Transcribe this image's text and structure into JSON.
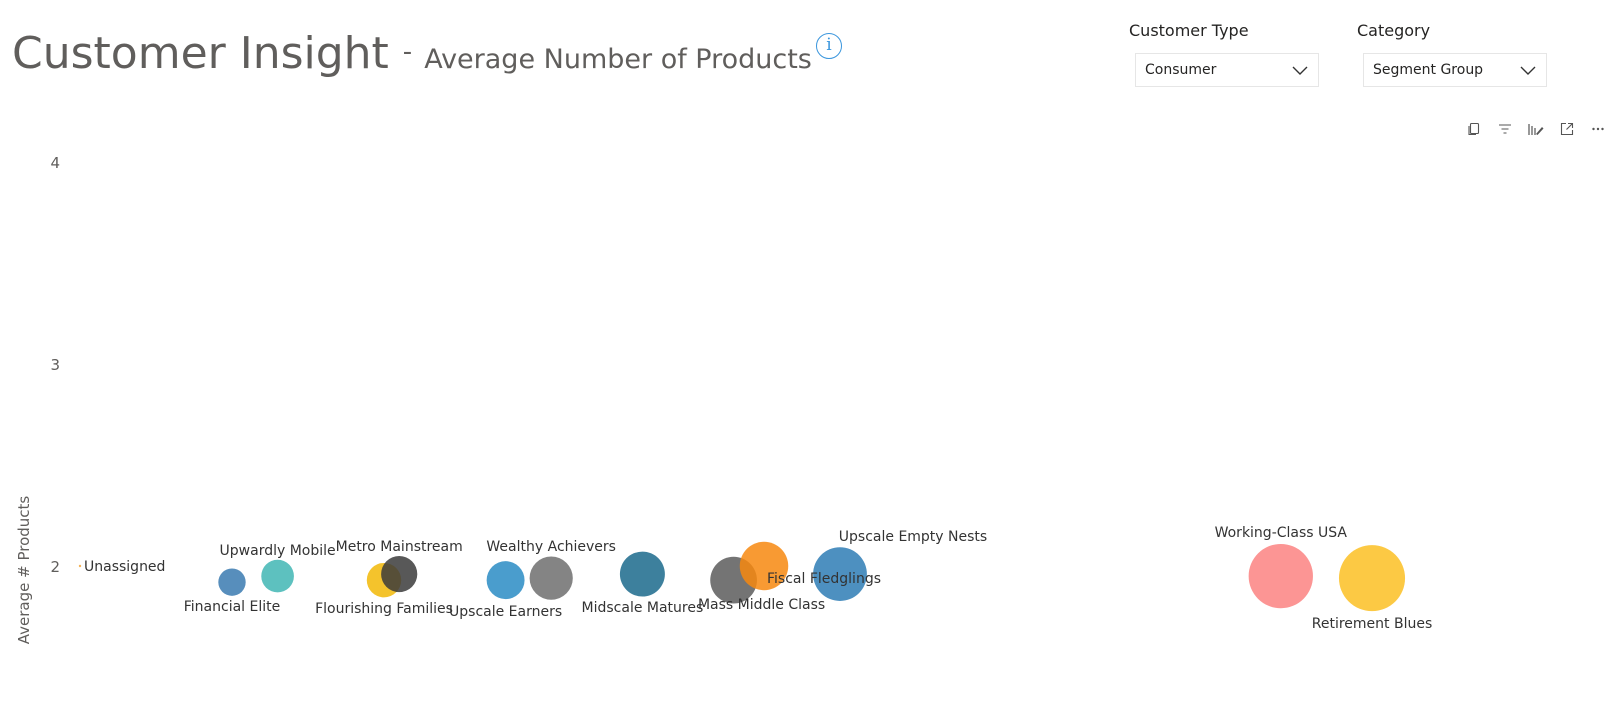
{
  "header": {
    "title": "Customer Insight",
    "separator": "-",
    "subtitle": "Average Number of Products",
    "info_icon": "info-icon"
  },
  "slicers": {
    "customer_type": {
      "label": "Customer Type",
      "value": "Consumer"
    },
    "category": {
      "label": "Category",
      "value": "Segment Group"
    }
  },
  "toolbar": {
    "icons": [
      "copy-icon",
      "filter-icon",
      "format-visual-icon",
      "focus-mode-icon",
      "more-options-icon"
    ]
  },
  "chart_data": {
    "type": "scatter",
    "title": "",
    "xlabel": "",
    "ylabel": "Average # Products",
    "ylim": [
      1.65,
      4.1
    ],
    "y_ticks": [
      2,
      3,
      4
    ],
    "grid": false,
    "legend": "none",
    "points": [
      {
        "label": "Unassigned",
        "x": 0.0,
        "y": 2.0,
        "size": 1,
        "color": "#f2a43a"
      },
      {
        "label": "Financial Elite",
        "x": 1.0,
        "y": 1.92,
        "size": 11,
        "color": "#3a7ab0"
      },
      {
        "label": "Upwardly Mobile",
        "x": 1.3,
        "y": 1.95,
        "size": 14,
        "color": "#41b6b4"
      },
      {
        "label": "Flourishing Families",
        "x": 2.0,
        "y": 1.93,
        "size": 15,
        "color": "#f2b807"
      },
      {
        "label": "Metro Mainstream",
        "x": 2.1,
        "y": 1.96,
        "size": 16,
        "color": "#3b3b3b"
      },
      {
        "label": "Upscale Earners",
        "x": 2.8,
        "y": 1.93,
        "size": 17,
        "color": "#2a8cc4"
      },
      {
        "label": "Wealthy Achievers",
        "x": 3.1,
        "y": 1.94,
        "size": 20,
        "color": "#6e6e6e"
      },
      {
        "label": "Midscale Matures",
        "x": 3.7,
        "y": 1.96,
        "size": 21,
        "color": "#1b6a8c"
      },
      {
        "label": "Mass Middle Class",
        "x": 4.3,
        "y": 1.93,
        "size": 22,
        "color": "#5c5c5c"
      },
      {
        "label": "Upscale Empty Nests",
        "x": 4.5,
        "y": 2.0,
        "size": 23,
        "color": "#f7880f"
      },
      {
        "label": "Fiscal Fledglings",
        "x": 5.0,
        "y": 1.96,
        "size": 26,
        "color": "#2e7db5"
      },
      {
        "label": "Working-Class USA",
        "x": 7.9,
        "y": 1.95,
        "size": 32,
        "color": "#fb8281"
      },
      {
        "label": "Retirement Blues",
        "x": 8.5,
        "y": 1.94,
        "size": 33,
        "color": "#fbbf23"
      }
    ]
  }
}
